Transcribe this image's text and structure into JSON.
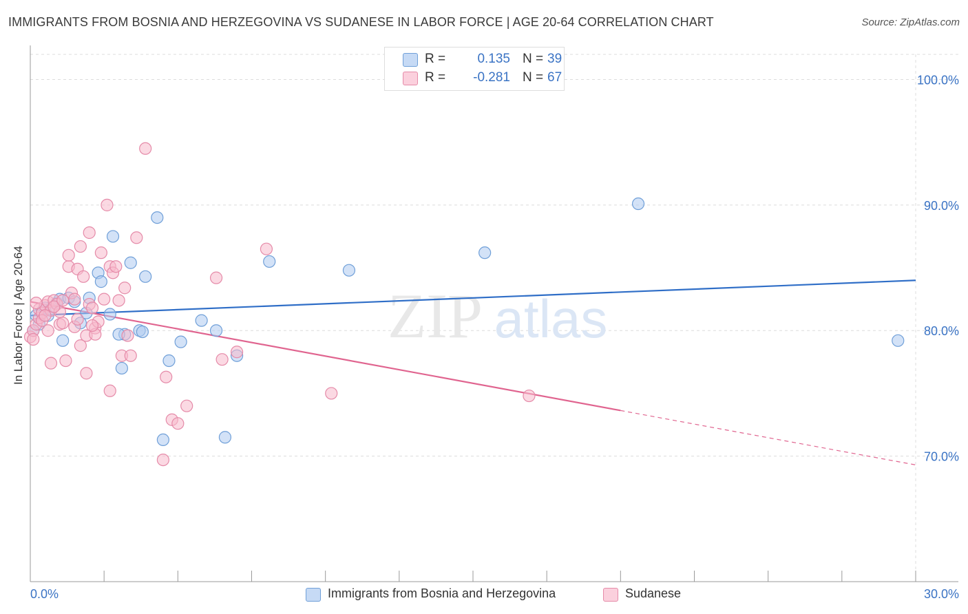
{
  "header": {
    "title": "IMMIGRANTS FROM BOSNIA AND HERZEGOVINA VS SUDANESE IN LABOR FORCE | AGE 20-64 CORRELATION CHART",
    "source": "Source: ZipAtlas.com"
  },
  "watermark": {
    "zip": "ZIP",
    "atlas": "atlas"
  },
  "legend": {
    "rows": [
      {
        "r_label": "R =",
        "r_value": "0.135",
        "n_label": "N =",
        "n_value": "39"
      },
      {
        "r_label": "R =",
        "r_value": "-0.281",
        "n_label": "N =",
        "n_value": "67"
      }
    ]
  },
  "colors": {
    "blue_fill": "#aecbf0",
    "blue_stroke": "#6f9fd8",
    "blue_line": "#2f6ec7",
    "pink_fill": "#f7b9cc",
    "pink_stroke": "#e58aa8",
    "pink_line": "#e0648f",
    "axis_text": "#3a73c4"
  },
  "chart_data": {
    "type": "scatter",
    "title": "IMMIGRANTS FROM BOSNIA AND HERZEGOVINA VS SUDANESE IN LABOR FORCE | AGE 20-64 CORRELATION CHART",
    "xlabel": "",
    "ylabel": "In Labor Force | Age 20-64",
    "xlim": [
      0,
      30
    ],
    "ylim": [
      60,
      102
    ],
    "x_tick_labels": [
      "0.0%",
      "30.0%"
    ],
    "y_ticks": [
      70,
      80,
      90,
      100
    ],
    "y_tick_labels": [
      "70.0%",
      "80.0%",
      "90.0%",
      "100.0%"
    ],
    "grid": true,
    "legend_position": "bottom-center",
    "series": [
      {
        "name": "Immigrants from Bosnia and Herzegovina",
        "color": "blue",
        "r": 0.135,
        "n": 39,
        "trend": {
          "x": [
            0,
            30
          ],
          "y": [
            81.2,
            84.0
          ],
          "dashed_from": null
        },
        "points": [
          [
            0.2,
            81.2
          ],
          [
            0.3,
            80.5
          ],
          [
            0.4,
            81.5
          ],
          [
            0.5,
            81.8
          ],
          [
            0.6,
            81.2
          ],
          [
            0.9,
            82.2
          ],
          [
            1.0,
            82.5
          ],
          [
            1.1,
            79.2
          ],
          [
            1.3,
            82.6
          ],
          [
            1.5,
            82.3
          ],
          [
            1.7,
            80.6
          ],
          [
            1.9,
            81.4
          ],
          [
            2.0,
            82.6
          ],
          [
            2.3,
            84.6
          ],
          [
            2.4,
            83.9
          ],
          [
            2.7,
            81.3
          ],
          [
            2.8,
            87.5
          ],
          [
            3.1,
            77.0
          ],
          [
            3.2,
            79.7
          ],
          [
            3.4,
            85.4
          ],
          [
            3.7,
            80.0
          ],
          [
            3.9,
            84.3
          ],
          [
            4.3,
            89.0
          ],
          [
            4.5,
            71.3
          ],
          [
            4.7,
            77.6
          ],
          [
            5.1,
            79.1
          ],
          [
            5.8,
            80.8
          ],
          [
            6.3,
            80.0
          ],
          [
            6.6,
            71.5
          ],
          [
            7.0,
            78.0
          ],
          [
            8.1,
            85.5
          ],
          [
            10.8,
            84.8
          ],
          [
            15.4,
            86.2
          ],
          [
            20.6,
            90.1
          ],
          [
            29.4,
            79.2
          ],
          [
            0.1,
            80.0
          ],
          [
            0.7,
            81.7
          ],
          [
            3.0,
            79.7
          ],
          [
            3.8,
            79.9
          ]
        ]
      },
      {
        "name": "Sudanese",
        "color": "pink",
        "r": -0.281,
        "n": 67,
        "trend": {
          "x": [
            0,
            30
          ],
          "y": [
            82.3,
            69.3
          ],
          "dashed_from": 20.0
        },
        "points": [
          [
            0.0,
            79.5
          ],
          [
            0.1,
            80.0
          ],
          [
            0.1,
            79.3
          ],
          [
            0.2,
            80.5
          ],
          [
            0.3,
            81.0
          ],
          [
            0.3,
            81.7
          ],
          [
            0.4,
            81.4
          ],
          [
            0.5,
            82.0
          ],
          [
            0.6,
            82.3
          ],
          [
            0.6,
            80.0
          ],
          [
            0.7,
            81.6
          ],
          [
            0.7,
            77.4
          ],
          [
            0.8,
            82.4
          ],
          [
            0.9,
            82.1
          ],
          [
            1.0,
            81.5
          ],
          [
            1.0,
            80.5
          ],
          [
            1.1,
            80.6
          ],
          [
            1.2,
            77.6
          ],
          [
            1.3,
            85.1
          ],
          [
            1.3,
            86.0
          ],
          [
            1.4,
            83.0
          ],
          [
            1.5,
            82.5
          ],
          [
            1.5,
            80.3
          ],
          [
            1.6,
            84.9
          ],
          [
            1.7,
            78.8
          ],
          [
            1.7,
            86.7
          ],
          [
            1.8,
            84.3
          ],
          [
            1.9,
            79.6
          ],
          [
            1.9,
            76.6
          ],
          [
            2.0,
            82.1
          ],
          [
            2.0,
            87.8
          ],
          [
            2.1,
            81.8
          ],
          [
            2.2,
            80.2
          ],
          [
            2.2,
            79.7
          ],
          [
            2.3,
            80.7
          ],
          [
            2.4,
            86.2
          ],
          [
            2.5,
            82.5
          ],
          [
            2.6,
            90.0
          ],
          [
            2.7,
            75.2
          ],
          [
            2.7,
            85.1
          ],
          [
            2.8,
            84.6
          ],
          [
            2.9,
            85.1
          ],
          [
            3.0,
            82.4
          ],
          [
            3.1,
            78.0
          ],
          [
            3.2,
            83.4
          ],
          [
            3.4,
            78.0
          ],
          [
            3.6,
            87.4
          ],
          [
            3.9,
            94.5
          ],
          [
            4.5,
            69.7
          ],
          [
            4.6,
            76.3
          ],
          [
            4.8,
            72.9
          ],
          [
            5.0,
            72.6
          ],
          [
            5.3,
            74.0
          ],
          [
            6.3,
            84.2
          ],
          [
            6.5,
            77.7
          ],
          [
            7.0,
            78.3
          ],
          [
            8.0,
            86.5
          ],
          [
            10.2,
            75.0
          ],
          [
            16.9,
            74.8
          ],
          [
            0.2,
            82.2
          ],
          [
            0.4,
            80.8
          ],
          [
            0.8,
            81.9
          ],
          [
            1.1,
            82.4
          ],
          [
            1.6,
            80.9
          ],
          [
            2.1,
            80.4
          ],
          [
            3.3,
            79.6
          ],
          [
            0.5,
            81.2
          ]
        ]
      }
    ]
  }
}
